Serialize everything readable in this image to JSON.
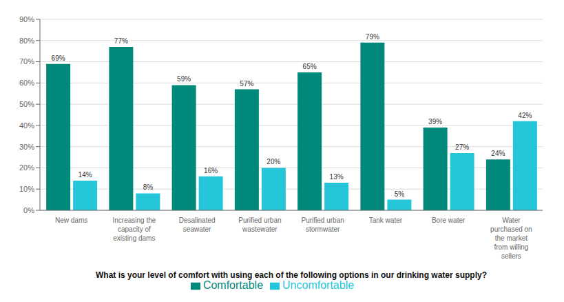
{
  "chart_data": {
    "type": "bar",
    "xlabel": "What is your level of comfort with using each of the following options in our drinking water supply?",
    "categories": [
      "New dams",
      "Increasing the\ncapacity of\nexisting dams",
      "Desalinated\nseawater",
      "Purified urban\nwastewater",
      "Purified urban\nstormwater",
      "Tank water",
      "Bore water",
      "Water\npurchased on\nthe market\nfrom willing\nsellers"
    ],
    "series": [
      {
        "name": "Comfortable",
        "color": "#00897B",
        "values": [
          69,
          77,
          59,
          57,
          65,
          79,
          39,
          24
        ],
        "value_labels": [
          "69%",
          "77%",
          "59%",
          "57%",
          "65%",
          "79%",
          "39%",
          "24%"
        ]
      },
      {
        "name": "Uncomfortable",
        "color": "#26C6DA",
        "values": [
          14,
          8,
          16,
          20,
          13,
          5,
          27,
          42
        ],
        "value_labels": [
          "14%",
          "8%",
          "16%",
          "20%",
          "13%",
          "5%",
          "27%",
          "42%"
        ]
      }
    ],
    "ylim": [
      0,
      90
    ],
    "yticks": [
      {
        "value": 0,
        "label": "0%"
      },
      {
        "value": 10,
        "label": "10%"
      },
      {
        "value": 20,
        "label": "20%"
      },
      {
        "value": 30,
        "label": "30%"
      },
      {
        "value": 40,
        "label": "40%"
      },
      {
        "value": 50,
        "label": "50%"
      },
      {
        "value": 60,
        "label": "60%"
      },
      {
        "value": 70,
        "label": "70%"
      },
      {
        "value": 80,
        "label": "80%"
      },
      {
        "value": 90,
        "label": "90%"
      }
    ],
    "grid": true,
    "data_labels": true,
    "legend": "bottom"
  }
}
